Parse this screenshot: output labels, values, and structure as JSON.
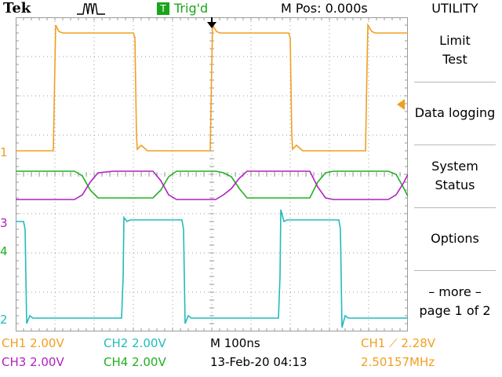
{
  "header": {
    "brand": "Tek",
    "trigger_badge": "T",
    "trigger_status": "Trig'd",
    "m_pos": "M Pos: 0.000s",
    "menu_title": "UTILITY"
  },
  "menu": {
    "items": [
      {
        "line1": "Limit",
        "line2": "Test"
      },
      {
        "line1": "Data logging",
        "line2": ""
      },
      {
        "line1": "System",
        "line2": "Status"
      },
      {
        "line1": "Options",
        "line2": ""
      },
      {
        "line1": "– more –",
        "line2": "page 1 of 2"
      }
    ]
  },
  "channel_markers": [
    "1",
    "3",
    "4",
    "2"
  ],
  "readouts": {
    "ch1": "CH1  2.00V",
    "ch2": "CH2  2.00V",
    "ch3": "CH3  2.00V",
    "ch4": "CH4  2.00V",
    "timebase": "M 100ns",
    "datetime": "13-Feb-20 04:13",
    "trigger": "CH1 ⟋ 2.28V",
    "frequency": "2.50157MHz"
  },
  "colors": {
    "ch1": "#f0a020",
    "ch2": "#22bbbb",
    "ch3": "#b020c0",
    "ch4": "#20b020"
  }
}
